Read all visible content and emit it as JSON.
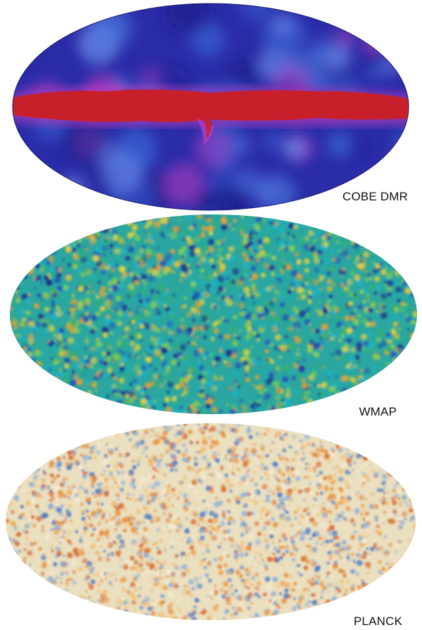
{
  "maps": [
    {
      "key": "cobe",
      "label": "COBE DMR",
      "palette": "cobe"
    },
    {
      "key": "wmap",
      "label": "WMAP",
      "palette": "wmap"
    },
    {
      "key": "planck",
      "label": "PLANCK",
      "palette": "planck"
    }
  ],
  "colors": {
    "cobe_base": "#2a2ca8",
    "cobe_band": "#c8202a",
    "cobe_halo": "#b23cc0",
    "cobe_light": "#4e7be0",
    "wmap_base": "#2aa7a0",
    "wmap_warm": "#e8d23c",
    "wmap_cold": "#1a2a8a",
    "planck_base": "#eadfbf",
    "planck_warm": "#e8923a",
    "planck_cold": "#4c7cc4"
  }
}
